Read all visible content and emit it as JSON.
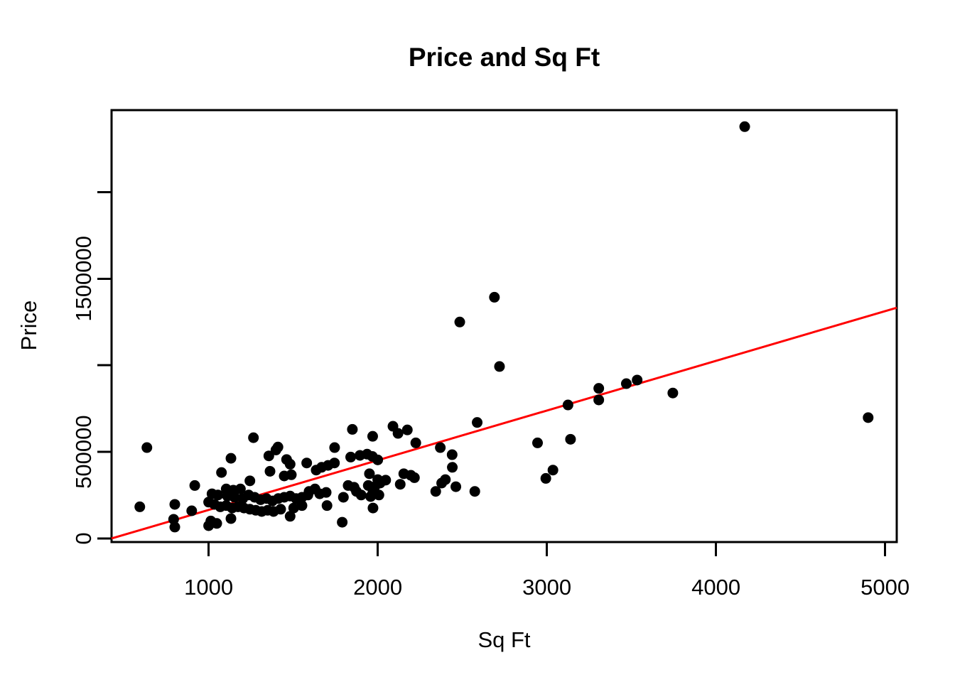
{
  "page": {
    "background_color": "#FFFFFF",
    "text_color": "#000000"
  },
  "chart_data": {
    "type": "scatter",
    "title": "Price and Sq Ft",
    "xlabel": "Sq Ft",
    "ylabel": "Price",
    "grid": false,
    "legend": null,
    "xlim": [
      426,
      5069
    ],
    "ylim": [
      -20500,
      2473500
    ],
    "x_ticks": [
      {
        "value": 1000,
        "label": "1000"
      },
      {
        "value": 2000,
        "label": "2000"
      },
      {
        "value": 3000,
        "label": "3000"
      },
      {
        "value": 4000,
        "label": "4000"
      },
      {
        "value": 5000,
        "label": "5000"
      }
    ],
    "y_ticks": [
      {
        "value": 0,
        "label": "0"
      },
      {
        "value": 500000,
        "label": "500000"
      },
      {
        "value": 1000000,
        "label": ""
      },
      {
        "value": 1500000,
        "label": "1500000"
      },
      {
        "value": 2000000,
        "label": ""
      }
    ],
    "point_color": "#000000",
    "regression_line": {
      "color": "#FF0000",
      "slope": 287,
      "intercept": -122200
    },
    "points": [
      [
        593,
        183000
      ],
      [
        635,
        525000
      ],
      [
        793,
        111000
      ],
      [
        800,
        197000
      ],
      [
        800,
        66000
      ],
      [
        900,
        160000
      ],
      [
        918,
        306000
      ],
      [
        1000,
        210000
      ],
      [
        1000,
        74000
      ],
      [
        1013,
        101000
      ],
      [
        1020,
        258000
      ],
      [
        1034,
        197000
      ],
      [
        1048,
        87000
      ],
      [
        1055,
        251000
      ],
      [
        1069,
        183000
      ],
      [
        1076,
        381000
      ],
      [
        1104,
        286000
      ],
      [
        1104,
        190000
      ],
      [
        1111,
        245000
      ],
      [
        1132,
        463000
      ],
      [
        1132,
        115000
      ],
      [
        1139,
        176000
      ],
      [
        1146,
        279000
      ],
      [
        1153,
        238000
      ],
      [
        1174,
        183000
      ],
      [
        1188,
        286000
      ],
      [
        1202,
        231000
      ],
      [
        1209,
        176000
      ],
      [
        1237,
        251000
      ],
      [
        1244,
        333000
      ],
      [
        1244,
        169000
      ],
      [
        1265,
        582000
      ],
      [
        1272,
        238000
      ],
      [
        1279,
        163000
      ],
      [
        1307,
        224000
      ],
      [
        1314,
        156000
      ],
      [
        1342,
        231000
      ],
      [
        1349,
        163000
      ],
      [
        1356,
        477000
      ],
      [
        1363,
        388000
      ],
      [
        1377,
        217000
      ],
      [
        1384,
        156000
      ],
      [
        1398,
        511000
      ],
      [
        1410,
        528000
      ],
      [
        1412,
        231000
      ],
      [
        1426,
        169000
      ],
      [
        1447,
        361000
      ],
      [
        1447,
        238000
      ],
      [
        1461,
        456000
      ],
      [
        1482,
        429000
      ],
      [
        1482,
        245000
      ],
      [
        1482,
        128000
      ],
      [
        1489,
        368000
      ],
      [
        1503,
        176000
      ],
      [
        1517,
        231000
      ],
      [
        1552,
        238000
      ],
      [
        1552,
        190000
      ],
      [
        1580,
        436000
      ],
      [
        1587,
        251000
      ],
      [
        1594,
        272000
      ],
      [
        1629,
        286000
      ],
      [
        1636,
        395000
      ],
      [
        1657,
        258000
      ],
      [
        1668,
        411000
      ],
      [
        1695,
        266000
      ],
      [
        1700,
        190000
      ],
      [
        1706,
        422000
      ],
      [
        1744,
        436000
      ],
      [
        1745,
        525000
      ],
      [
        1790,
        94000
      ],
      [
        1797,
        238000
      ],
      [
        1825,
        306000
      ],
      [
        1840,
        470000
      ],
      [
        1850,
        630000
      ],
      [
        1860,
        296000
      ],
      [
        1874,
        272000
      ],
      [
        1895,
        480000
      ],
      [
        1902,
        251000
      ],
      [
        1937,
        487000
      ],
      [
        1944,
        306000
      ],
      [
        1951,
        374000
      ],
      [
        1958,
        242000
      ],
      [
        1968,
        474000
      ],
      [
        1970,
        590000
      ],
      [
        1972,
        269000
      ],
      [
        1972,
        176000
      ],
      [
        1982,
        299000
      ],
      [
        2000,
        454000
      ],
      [
        2000,
        340000
      ],
      [
        2007,
        251000
      ],
      [
        2014,
        320000
      ],
      [
        2047,
        337000
      ],
      [
        2090,
        648000
      ],
      [
        2120,
        607000
      ],
      [
        2133,
        313000
      ],
      [
        2154,
        374000
      ],
      [
        2175,
        627000
      ],
      [
        2196,
        365000
      ],
      [
        2217,
        351000
      ],
      [
        2225,
        552000
      ],
      [
        2343,
        272000
      ],
      [
        2370,
        525000
      ],
      [
        2378,
        320000
      ],
      [
        2400,
        340000
      ],
      [
        2440,
        484000
      ],
      [
        2441,
        411000
      ],
      [
        2462,
        299000
      ],
      [
        2485,
        1250000
      ],
      [
        2574,
        272000
      ],
      [
        2588,
        670000
      ],
      [
        2690,
        1393000
      ],
      [
        2720,
        993000
      ],
      [
        2945,
        552000
      ],
      [
        2994,
        347000
      ],
      [
        3036,
        395000
      ],
      [
        3125,
        771000
      ],
      [
        3140,
        573000
      ],
      [
        3307,
        867000
      ],
      [
        3307,
        800000
      ],
      [
        3470,
        894000
      ],
      [
        3534,
        915000
      ],
      [
        3745,
        840000
      ],
      [
        4170,
        2378000
      ],
      [
        4900,
        698000
      ]
    ]
  }
}
